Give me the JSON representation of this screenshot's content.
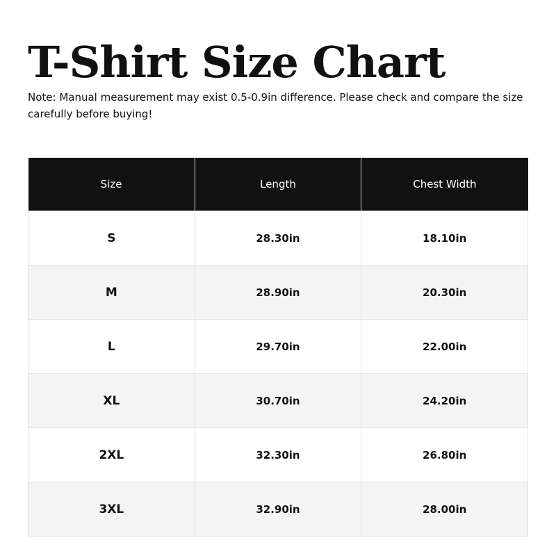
{
  "title": "T-Shirt Size Chart",
  "note": "Note: Manual measurement may exist 0.5-0.9in difference. Please check and compare the size carefully before buying!",
  "table": {
    "headers": [
      "Size",
      "Length",
      "Chest Width"
    ],
    "rows": [
      [
        "S",
        "28.30in",
        "18.10in"
      ],
      [
        "M",
        "28.90in",
        "20.30in"
      ],
      [
        "L",
        "29.70in",
        "22.00in"
      ],
      [
        "XL",
        "30.70in",
        "24.20in"
      ],
      [
        "2XL",
        "32.30in",
        "26.80in"
      ],
      [
        "3XL",
        "32.90in",
        "28.00in"
      ]
    ]
  },
  "colors": {
    "header_bg": "#111111",
    "alt_row_bg": "#f4f4f4"
  }
}
